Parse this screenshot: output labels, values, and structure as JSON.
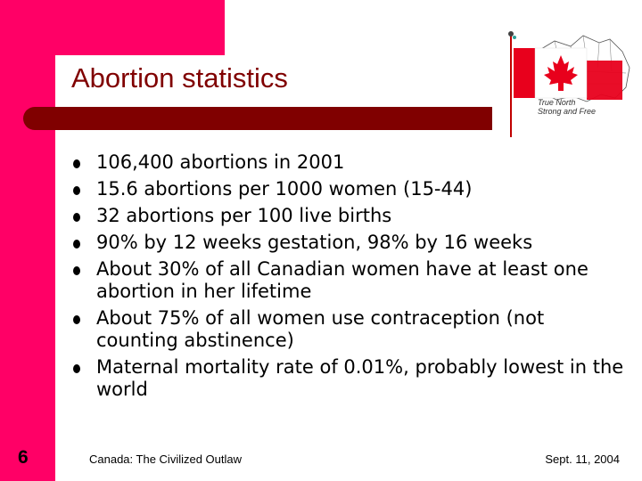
{
  "slide": {
    "title": "Abortion statistics",
    "bullets": [
      "106,400 abortions in 2001",
      "15.6 abortions per 1000 women (15-44)",
      "32 abortions per 100 live births",
      "90% by 12 weeks gestation, 98% by 16 weeks",
      "About 30% of all Canadian women have at least one abortion in her lifetime",
      "About 75% of all women use contraception (not counting abstinence)",
      "Maternal mortality rate of 0.01%, probably lowest in the world"
    ],
    "number": "6"
  },
  "logo": {
    "line1": "True North",
    "line2": "Strong and Free",
    "icon": "canada-flag-map-icon"
  },
  "footer": {
    "left": "Canada: The Civilized Outlaw",
    "right": "Sept. 11, 2004"
  },
  "colors": {
    "accent": "#ff0066",
    "title": "#800000",
    "flag_red": "#e8001c"
  }
}
